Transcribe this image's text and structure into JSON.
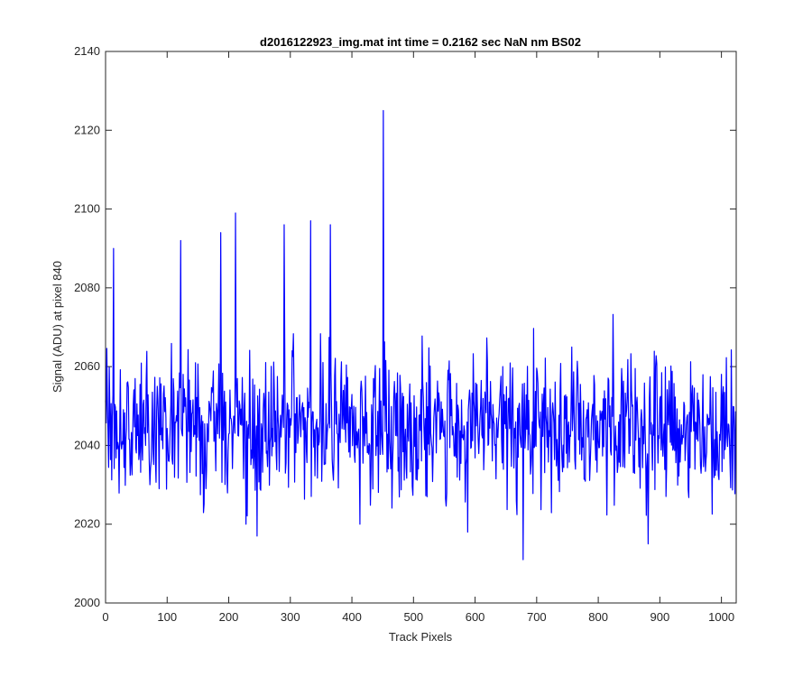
{
  "chart_data": {
    "type": "line",
    "title": "d2016122923_img.mat int time = 0.2162 sec  NaN nm BS02",
    "xlabel": "Track Pixels",
    "ylabel": "Signal (ADU) at pixel 840",
    "xlim": [
      0,
      1024
    ],
    "ylim": [
      2000,
      2140
    ],
    "xticks": [
      0,
      100,
      200,
      300,
      400,
      500,
      600,
      700,
      800,
      900,
      1000
    ],
    "yticks": [
      2000,
      2020,
      2040,
      2060,
      2080,
      2100,
      2120,
      2140
    ],
    "grid": false,
    "box": true,
    "series": [
      {
        "color": "#0000ff",
        "n_points": 1024,
        "approx_mean": 2045,
        "approx_range": [
          2011,
          2125
        ],
        "spike": {
          "x": 451,
          "y": 2125
        },
        "notable_points": [
          {
            "x": 13,
            "y": 2090
          },
          {
            "x": 122,
            "y": 2092
          },
          {
            "x": 187,
            "y": 2094
          },
          {
            "x": 211,
            "y": 2099
          },
          {
            "x": 228,
            "y": 2020
          },
          {
            "x": 246,
            "y": 2017
          },
          {
            "x": 290,
            "y": 2096
          },
          {
            "x": 333,
            "y": 2097
          },
          {
            "x": 365,
            "y": 2096
          },
          {
            "x": 413,
            "y": 2020
          },
          {
            "x": 451,
            "y": 2125
          },
          {
            "x": 588,
            "y": 2018
          },
          {
            "x": 678,
            "y": 2011
          },
          {
            "x": 881,
            "y": 2015
          }
        ]
      }
    ]
  }
}
